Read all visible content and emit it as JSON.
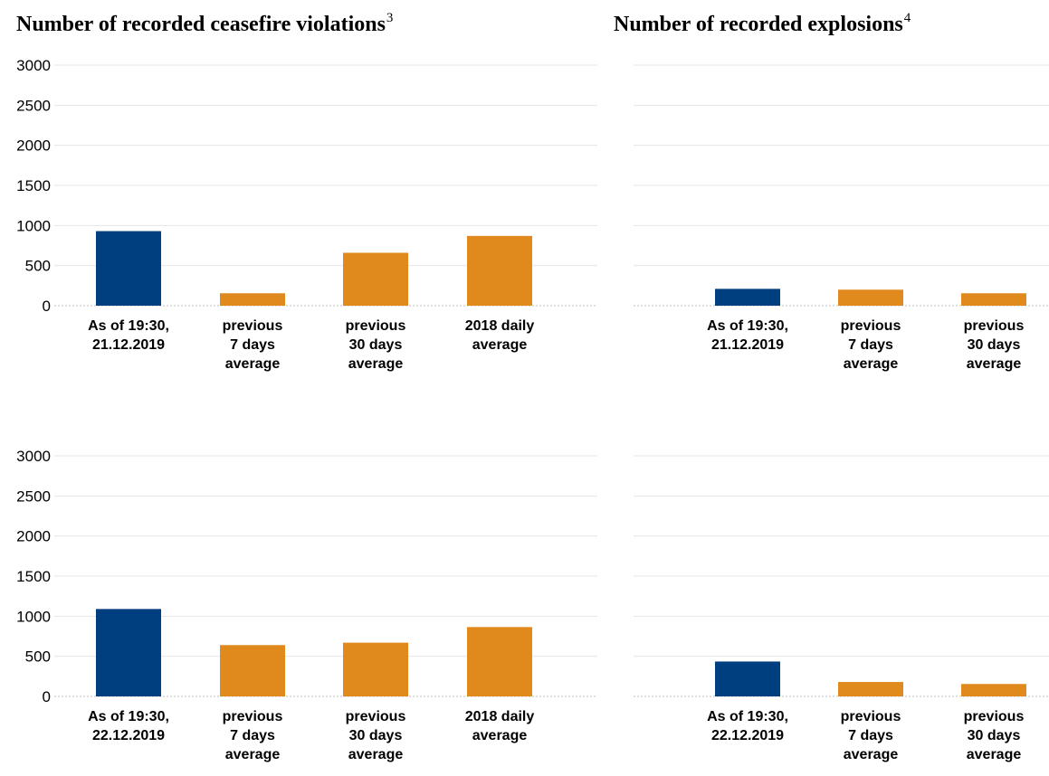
{
  "titles": {
    "ceasefire": "Number of recorded ceasefire violations",
    "ceasefire_note": "3",
    "explosions": "Number of recorded explosions",
    "explosions_note": "4"
  },
  "colors": {
    "current": "#003f7f",
    "average": "#e08a1e",
    "grid": "#e6e6e6",
    "baseline": "#bfbfbf"
  },
  "chart_data": [
    {
      "type": "bar",
      "title": "Number of recorded ceasefire violations",
      "ylim": [
        0,
        3000
      ],
      "yticks": [
        0,
        500,
        1000,
        1500,
        2000,
        2500,
        3000
      ],
      "categories": [
        [
          "As of 19:30,",
          "21.12.2019"
        ],
        [
          "previous",
          "7 days",
          "average"
        ],
        [
          "previous",
          "30 days",
          "average"
        ],
        [
          "2018 daily",
          "average"
        ]
      ],
      "values": [
        930,
        155,
        660,
        870
      ],
      "bar_colors": [
        "current",
        "average",
        "average",
        "average"
      ],
      "grid": true
    },
    {
      "type": "bar",
      "title": "Number of recorded explosions",
      "ylim": [
        0,
        3000
      ],
      "categories": [
        [
          "As of 19:30,",
          "21.12.2019"
        ],
        [
          "previous",
          "7 days",
          "average"
        ],
        [
          "previous",
          "30 days",
          "average"
        ]
      ],
      "values": [
        210,
        200,
        155
      ],
      "bar_colors": [
        "current",
        "average",
        "average"
      ],
      "grid": true
    },
    {
      "type": "bar",
      "title": "Number of recorded ceasefire violations",
      "ylim": [
        0,
        3000
      ],
      "yticks": [
        0,
        500,
        1000,
        1500,
        2000,
        2500,
        3000
      ],
      "categories": [
        [
          "As of 19:30,",
          "22.12.2019"
        ],
        [
          "previous",
          "7 days",
          "average"
        ],
        [
          "previous",
          "30 days",
          "average"
        ],
        [
          "2018 daily",
          "average"
        ]
      ],
      "values": [
        1090,
        640,
        670,
        865
      ],
      "bar_colors": [
        "current",
        "average",
        "average",
        "average"
      ],
      "grid": true
    },
    {
      "type": "bar",
      "title": "Number of recorded explosions",
      "ylim": [
        0,
        3000
      ],
      "categories": [
        [
          "As of 19:30,",
          "22.12.2019"
        ],
        [
          "previous",
          "7 days",
          "average"
        ],
        [
          "previous",
          "30 days",
          "average"
        ]
      ],
      "values": [
        435,
        180,
        155
      ],
      "bar_colors": [
        "current",
        "average",
        "average"
      ],
      "grid": true
    }
  ]
}
